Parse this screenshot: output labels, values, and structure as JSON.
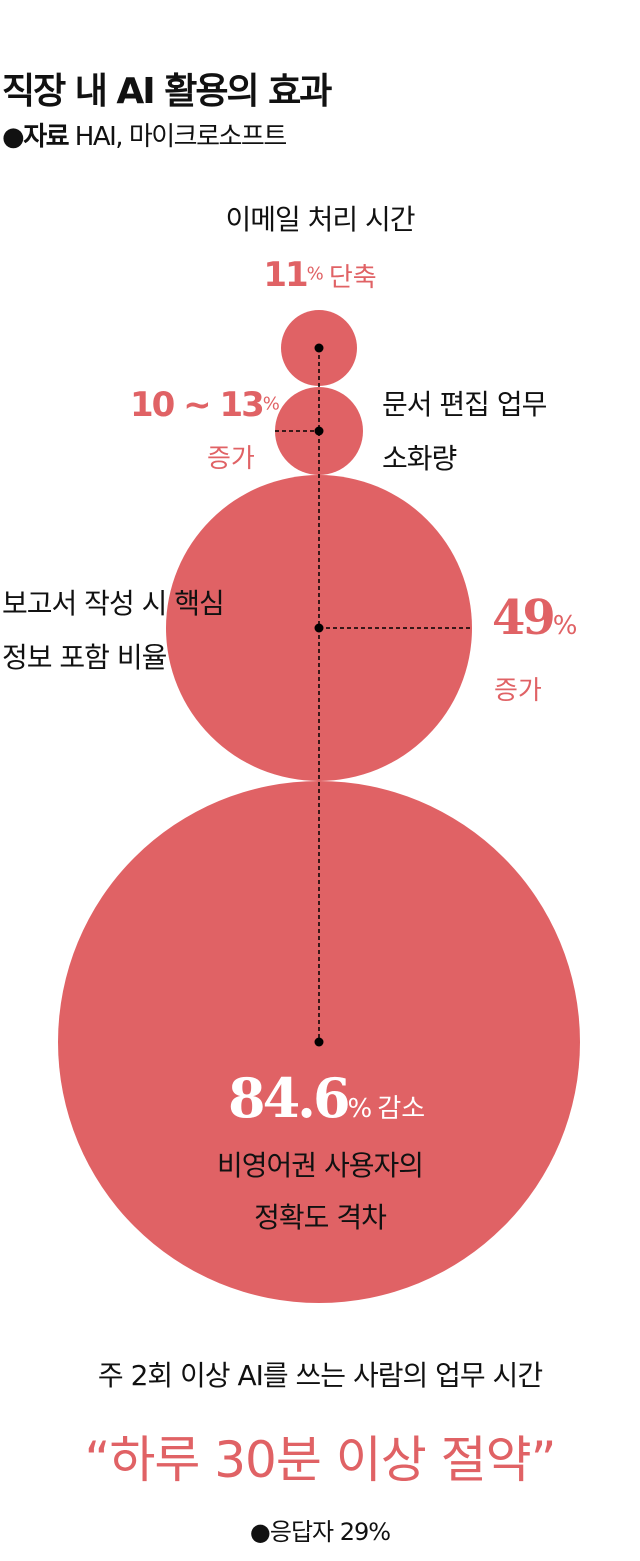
{
  "header": {
    "title": "직장 내 AI 활용의 효과",
    "source_bullet": "●",
    "source_label": "자료",
    "source_text": "HAI, 마이크로소프트"
  },
  "colors": {
    "accent": "#e06265",
    "text": "#111111",
    "line": "#000000"
  },
  "items": [
    {
      "label": "이메일 처리 시간",
      "value": "11",
      "unit": "%",
      "change": "단축"
    },
    {
      "label_line1": "문서 편집 업무",
      "label_line2": "소화량",
      "value": "10 ~ 13",
      "unit": "%",
      "change": "증가"
    },
    {
      "label_line1": "보고서 작성 시 핵심",
      "label_line2": "정보 포함 비율",
      "value": "49",
      "unit": "%",
      "change": "증가"
    },
    {
      "label_line1": "비영어권 사용자의",
      "label_line2": "정확도 격차",
      "value": "84.6",
      "unit": "%",
      "change": "감소"
    }
  ],
  "footer": {
    "subtitle": "주 2회 이상 AI를 쓰는 사람의 업무 시간",
    "headline": "“하루 30분 이상 절약”",
    "note": "●응답자 29%"
  }
}
